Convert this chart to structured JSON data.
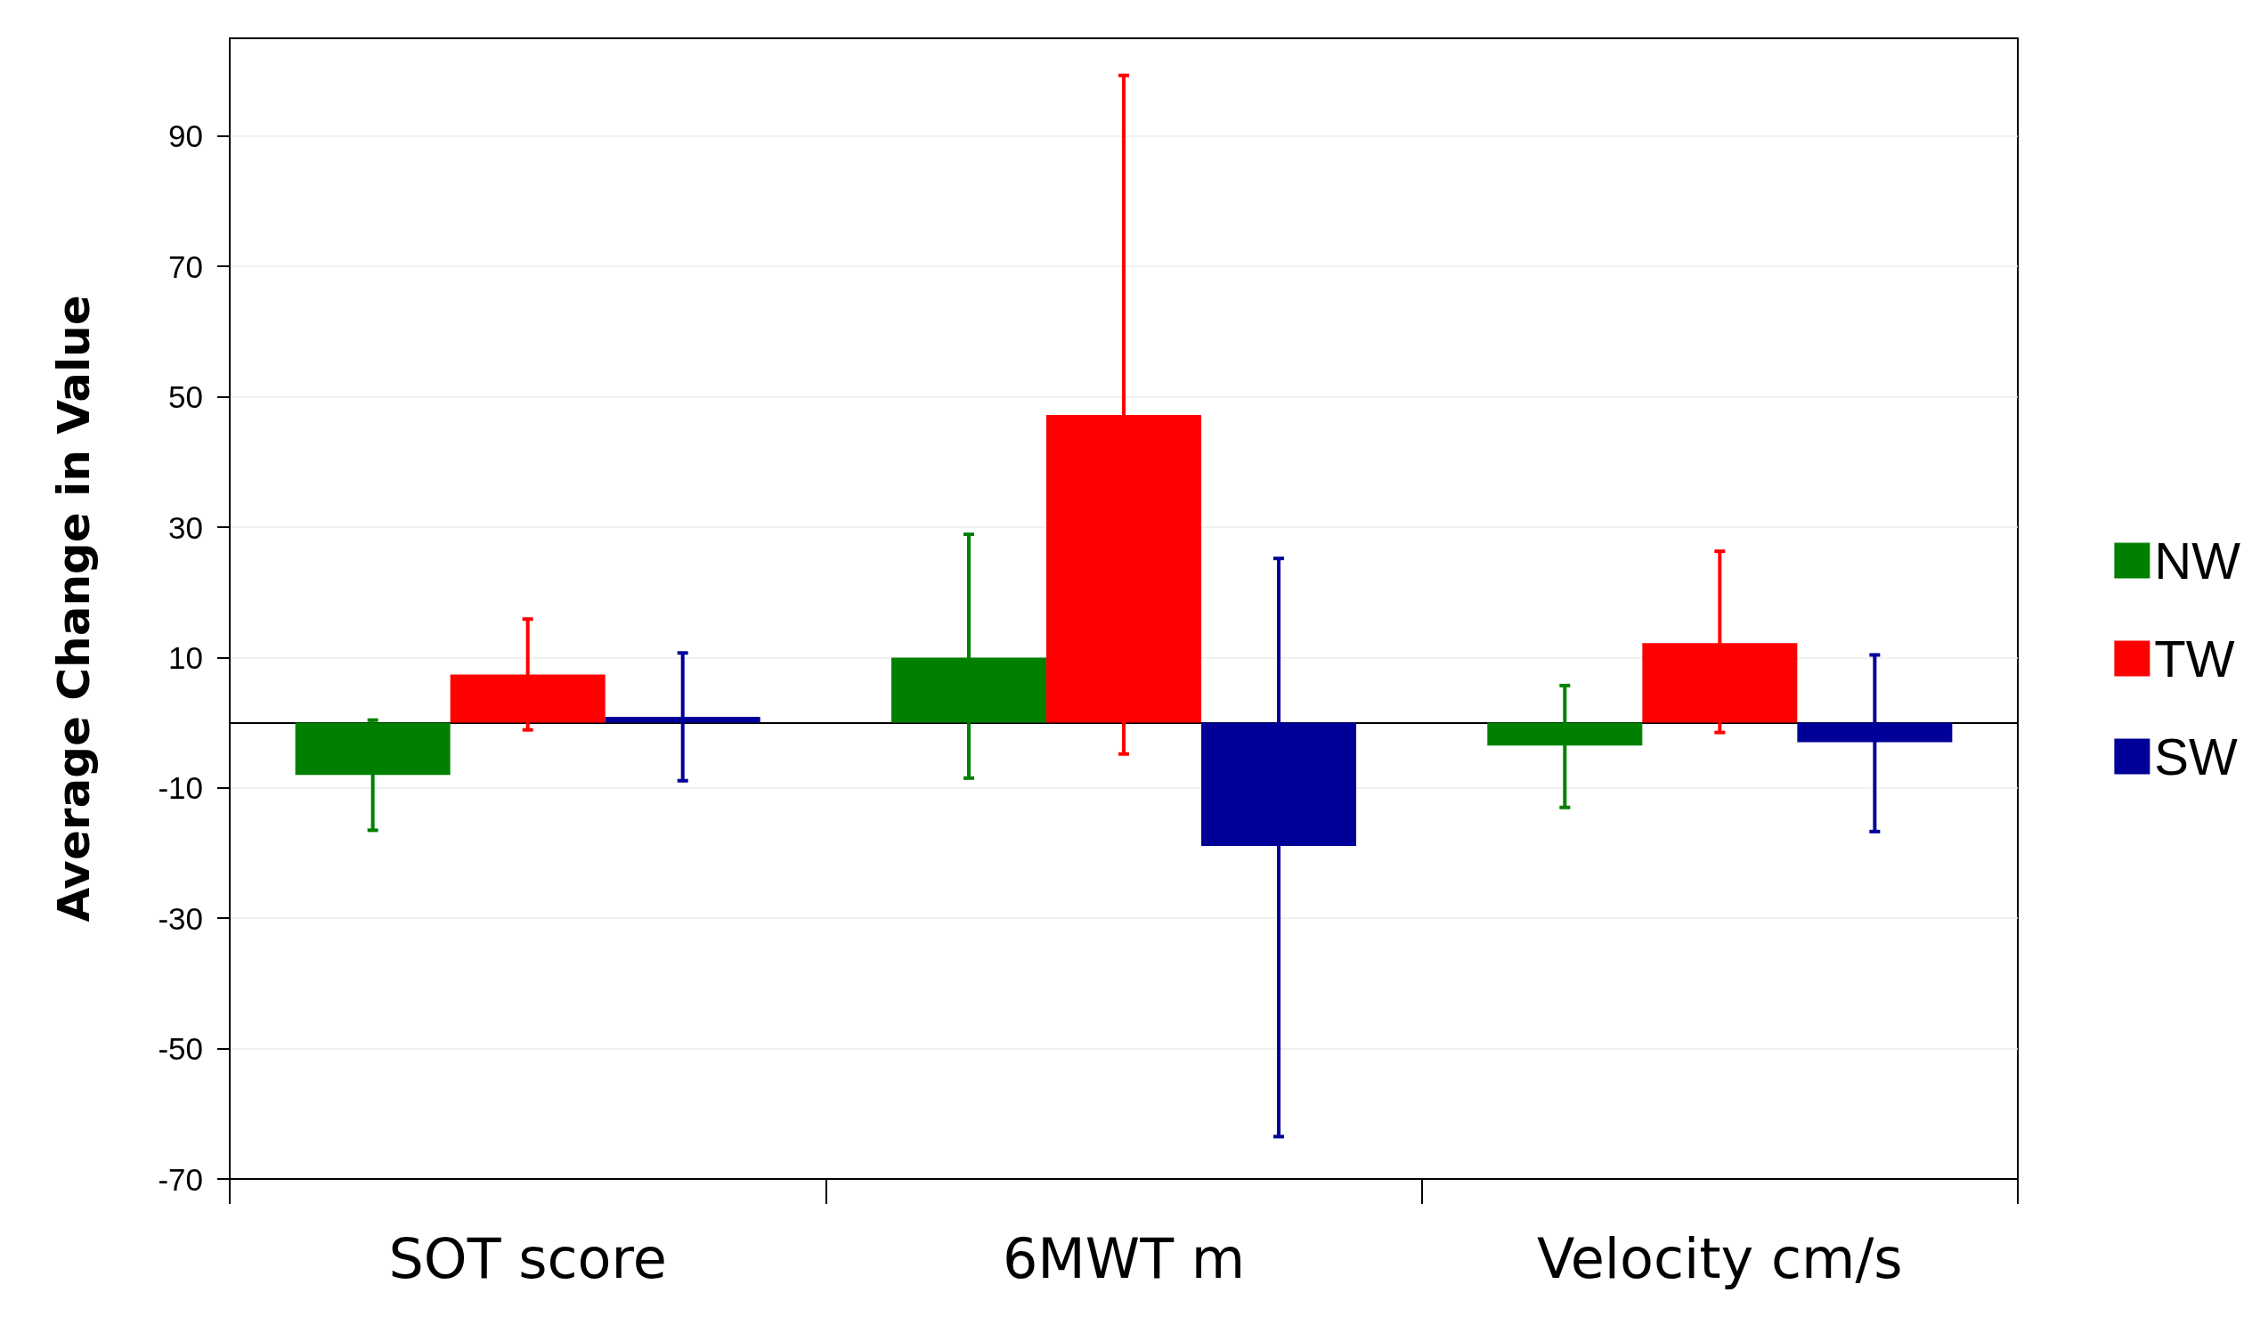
{
  "chart_data": {
    "type": "bar",
    "ylabel": "Average Change in Value",
    "categories": [
      "SOT score",
      "6MWT m",
      "Velocity cm/s"
    ],
    "series": [
      {
        "name": "NW",
        "color": "#008000",
        "values": [
          -8.0,
          10.0,
          -3.5
        ],
        "errors": [
          [
            -16.5,
            0.4
          ],
          [
            -8.5,
            28.9
          ],
          [
            -13.0,
            5.7
          ]
        ]
      },
      {
        "name": "TW",
        "color": "#ff0000",
        "values": [
          7.4,
          47.2,
          12.2
        ],
        "errors": [
          [
            -1.1,
            15.9
          ],
          [
            -4.8,
            99.3
          ],
          [
            -1.5,
            26.3
          ]
        ]
      },
      {
        "name": "SW",
        "color": "#000099",
        "values": [
          0.9,
          -18.9,
          -3.0
        ],
        "errors": [
          [
            -8.9,
            10.7
          ],
          [
            -63.5,
            25.2
          ],
          [
            -16.7,
            10.4
          ]
        ]
      }
    ],
    "ylim": [
      -70,
      105
    ],
    "yticks": [
      -70,
      -50,
      -30,
      -10,
      10,
      30,
      50,
      70,
      90
    ],
    "grid": "y",
    "legend": "right"
  }
}
